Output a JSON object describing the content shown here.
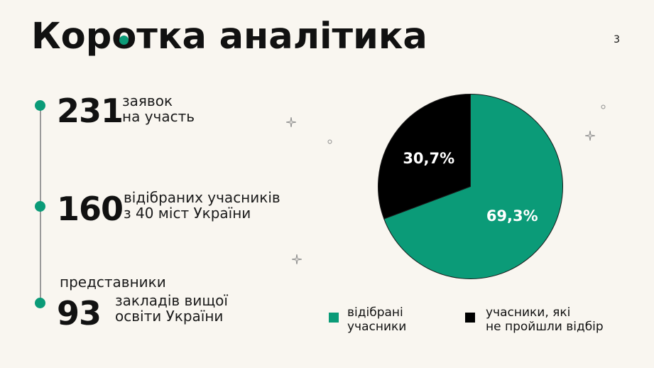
{
  "slide": {
    "title_before": "Кор",
    "title_o": "о",
    "title_after": "тка аналітика",
    "page_number": "3"
  },
  "stats": [
    {
      "number": "231",
      "line1": "заявок",
      "line2": "на участь"
    },
    {
      "number": "160",
      "line1": "відібраних учасників",
      "line2": "з 40 міст України"
    },
    {
      "number": "93",
      "prefix": "представники",
      "line1": "закладів вищої",
      "line2": "освіти України"
    }
  ],
  "colors": {
    "accent": "#0b9b78",
    "dark": "#000000",
    "background": "#f9f6f0"
  },
  "chart_data": {
    "type": "pie",
    "values": [
      69.3,
      30.7
    ],
    "labels": [
      "69,3%",
      "30,7%"
    ],
    "colors": [
      "#0b9b78",
      "#000000"
    ],
    "legend": [
      {
        "line1": "відібрані",
        "line2": "учасники"
      },
      {
        "line1": "учасники, які",
        "line2": "не пройшли відбір"
      }
    ],
    "legend_placement": "bottom"
  }
}
